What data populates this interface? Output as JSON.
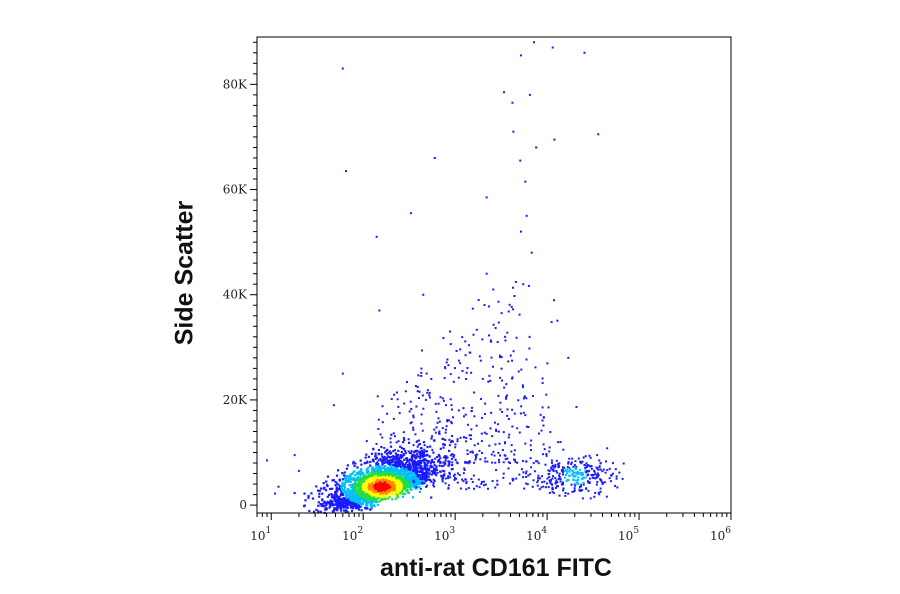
{
  "chart_data": {
    "type": "scatter",
    "title": "",
    "xlabel": "anti-rat CD161 FITC",
    "ylabel": "Side Scatter",
    "x_scale": "log",
    "xlim": [
      7,
      1000000
    ],
    "ylim": [
      -1500,
      89000
    ],
    "x_ticks": [
      10,
      100,
      1000,
      10000,
      100000,
      1000000
    ],
    "x_tick_labels": [
      {
        "base": "10",
        "exp": "1"
      },
      {
        "base": "10",
        "exp": "2"
      },
      {
        "base": "10",
        "exp": "3"
      },
      {
        "base": "10",
        "exp": "4"
      },
      {
        "base": "10",
        "exp": "5"
      },
      {
        "base": "10",
        "exp": "6"
      }
    ],
    "y_ticks": [
      0,
      20000,
      40000,
      60000,
      80000
    ],
    "y_tick_labels": [
      "0",
      "20K",
      "40K",
      "60K",
      "80K"
    ],
    "grid": false,
    "density_colormap": [
      "#1a1aff",
      "#00bfff",
      "#22dd44",
      "#ffff00",
      "#ff8800",
      "#ff0000"
    ],
    "populations": [
      {
        "name": "main",
        "x_center": 160,
        "y_center": 3500,
        "n": 2600
      },
      {
        "name": "cd161-high",
        "x_center": 20000,
        "y_center": 5500,
        "n": 260
      },
      {
        "name": "diagonal",
        "x_range": [
          200,
          8000
        ],
        "y_range": [
          8000,
          45000
        ],
        "n": 380
      }
    ],
    "points": [
      [
        60,
        83000
      ],
      [
        65,
        63500
      ],
      [
        140,
        51000
      ],
      [
        330,
        55500
      ],
      [
        600,
        66000
      ],
      [
        2200,
        58500
      ],
      [
        3800,
        90000
      ],
      [
        5200,
        85500
      ],
      [
        6500,
        78000
      ],
      [
        7200,
        88000
      ],
      [
        11500,
        87000
      ],
      [
        25500,
        86000
      ],
      [
        36000,
        70500
      ],
      [
        5800,
        61500
      ],
      [
        5200,
        52000
      ],
      [
        6800,
        48000
      ],
      [
        5500,
        42000
      ],
      [
        3200,
        36500
      ],
      [
        11200,
        34800
      ],
      [
        17000,
        28000
      ],
      [
        12000,
        69500
      ],
      [
        4200,
        76500
      ],
      [
        3400,
        78500
      ],
      [
        48,
        19000
      ],
      [
        60,
        25000
      ],
      [
        18,
        9500
      ],
      [
        9,
        8500
      ],
      [
        2200,
        44000
      ],
      [
        1800,
        39000
      ],
      [
        2600,
        41000
      ],
      [
        5100,
        65500
      ],
      [
        6000,
        55000
      ],
      [
        4300,
        71000
      ],
      [
        7600,
        68000
      ],
      [
        2900,
        31000
      ],
      [
        150,
        37000
      ],
      [
        450,
        40000
      ],
      [
        880,
        33000
      ],
      [
        1300,
        28500
      ],
      [
        2000,
        24000
      ],
      [
        3600,
        23000
      ],
      [
        9800,
        21000
      ],
      [
        14000,
        12000
      ],
      [
        45000,
        10800
      ],
      [
        52000,
        8000
      ],
      [
        35000,
        9500
      ],
      [
        20,
        6500
      ],
      [
        12,
        3500
      ],
      [
        11,
        2200
      ]
    ]
  }
}
